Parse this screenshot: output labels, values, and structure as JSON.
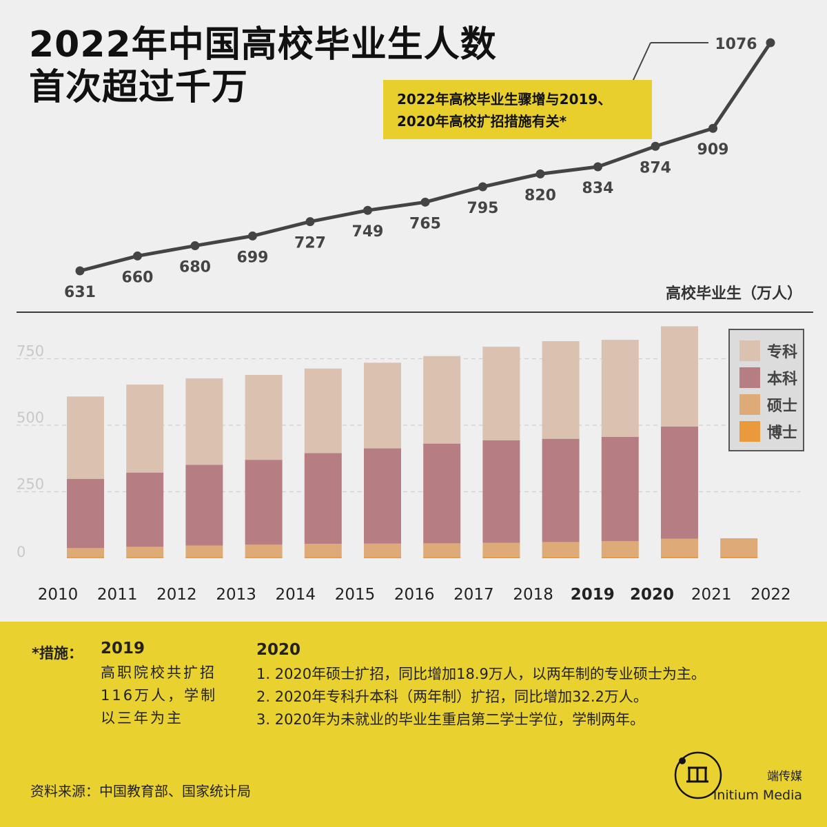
{
  "title": {
    "line1": "2022年中国高校毕业生人数",
    "line2": "首次超过千万"
  },
  "note": {
    "line1": "2022年高校毕业生骤增与2019、",
    "line2": "2020年高校扩招措施有关*"
  },
  "colors": {
    "line": "#444444",
    "zhuanke": "#dbc1af",
    "benke": "#b67e83",
    "shuoshi": "#ddaa78",
    "boshi": "#ea9a3b",
    "highlight": "#e9cf2c"
  },
  "chart_data": [
    {
      "type": "line",
      "title": "",
      "unit_label": "高校毕业生（万人）",
      "x": [
        "2010",
        "2011",
        "2012",
        "2013",
        "2014",
        "2015",
        "2016",
        "2017",
        "2018",
        "2019",
        "2020",
        "2021",
        "2022"
      ],
      "values": [
        631,
        660,
        680,
        699,
        727,
        749,
        765,
        795,
        820,
        834,
        874,
        909,
        1076
      ],
      "labels": [
        "631",
        "660",
        "680",
        "699",
        "727",
        "749",
        "765",
        "795",
        "820",
        "834",
        "874",
        "909",
        "1076"
      ],
      "grid": false
    },
    {
      "type": "bar",
      "stacked": true,
      "categories": [
        "2010",
        "2011",
        "2012",
        "2013",
        "2014",
        "2015",
        "2016",
        "2017",
        "2018",
        "2019",
        "2020",
        "2021",
        "2022"
      ],
      "highlighted_categories": [
        "2019",
        "2020"
      ],
      "ylim": [
        0,
        860
      ],
      "yticks": [
        0,
        250,
        500,
        750
      ],
      "ytick_labels": [
        "0",
        "250",
        "500",
        "750"
      ],
      "grid": true,
      "legend_position": "top-right",
      "series": [
        {
          "name": "博士",
          "values": [
            5,
            5,
            5,
            5,
            5,
            5,
            5,
            6,
            6,
            6,
            7,
            7,
            null
          ]
        },
        {
          "name": "硕士",
          "values": [
            33,
            38,
            43,
            46,
            49,
            50,
            51,
            52,
            55,
            58,
            66,
            68,
            null
          ]
        },
        {
          "name": "本科",
          "values": [
            260,
            279,
            303,
            319,
            341,
            358,
            375,
            385,
            388,
            392,
            422,
            null,
            null
          ]
        },
        {
          "name": "专科",
          "values": [
            310,
            331,
            325,
            319,
            318,
            322,
            329,
            352,
            367,
            365,
            377,
            null,
            null
          ]
        }
      ]
    }
  ],
  "measures": {
    "label": "*措施：",
    "y2019": {
      "year": "2019",
      "lines": [
        "高职院校共扩招",
        "116万人，学制",
        "以三年为主"
      ]
    },
    "y2020": {
      "year": "2020",
      "lines": [
        "1. 2020年硕士扩招，同比增加18.9万人，以两年制的专业硕士为主。",
        "2. 2020年专科升本科（两年制）扩招，同比增加32.2万人。",
        "3. 2020年为未就业的毕业生重启第二学士学位，学制两年。"
      ]
    }
  },
  "source": "资料来源：中国教育部、国家统计局",
  "brand": {
    "cn": "端传媒",
    "en": "Initium Media",
    "logo_text": "m"
  }
}
